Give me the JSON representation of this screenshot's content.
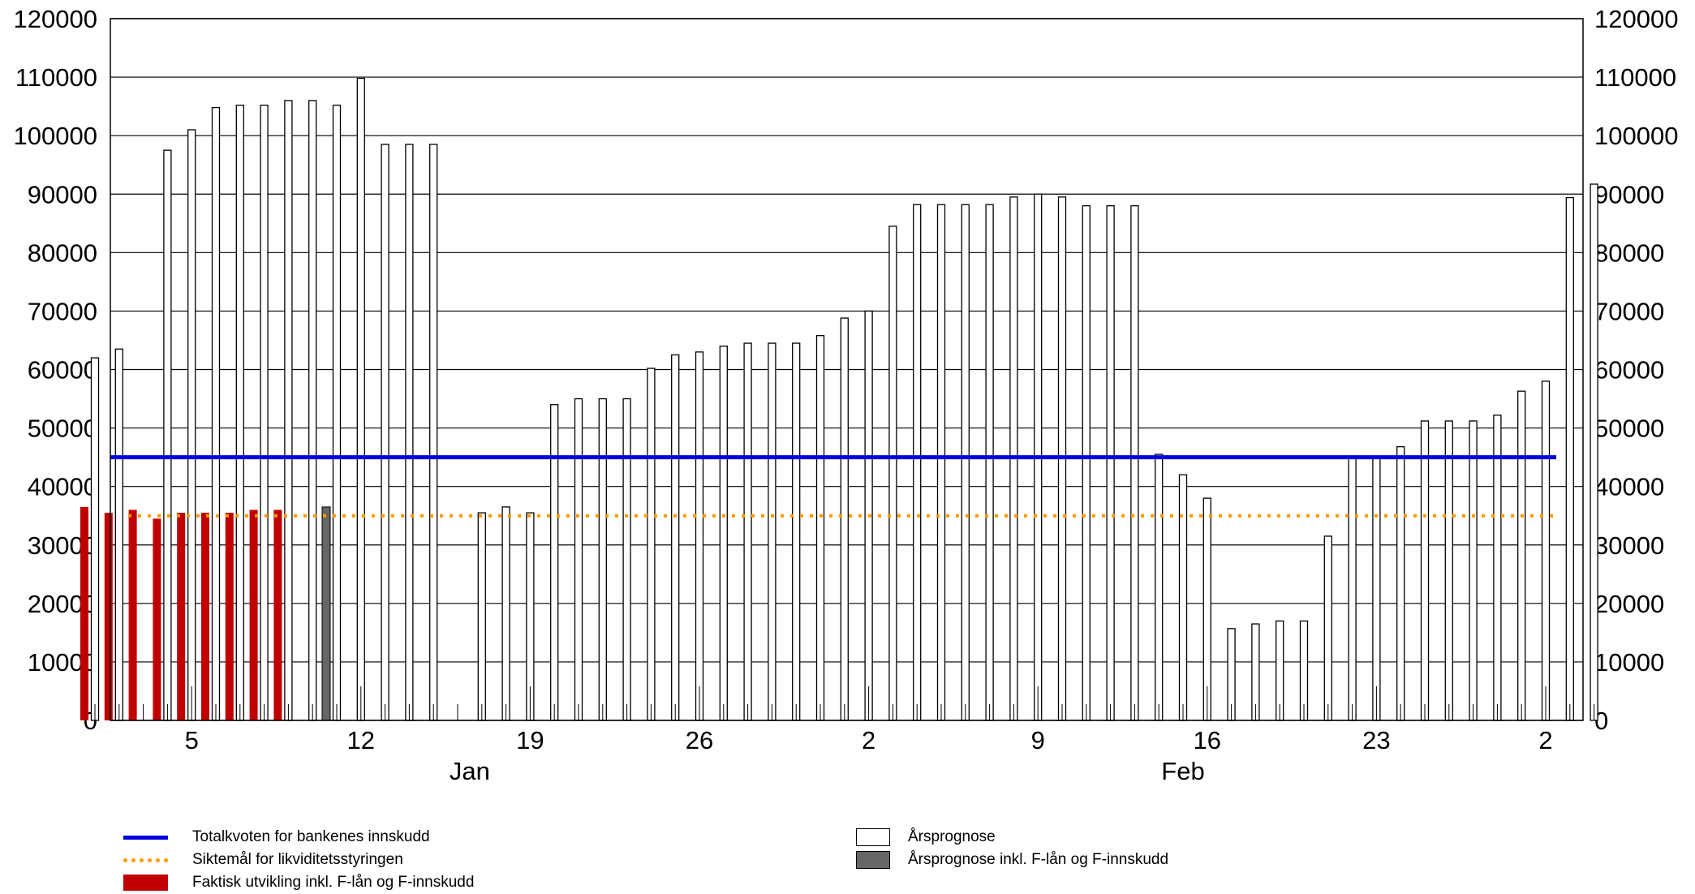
{
  "chart_data": {
    "type": "bar",
    "y_ticks": [
      "0",
      "10000",
      "20000",
      "30000",
      "40000",
      "50000",
      "60000",
      "70000",
      "80000",
      "90000",
      "100000",
      "110000",
      "120000"
    ],
    "ylim": [
      0,
      120000
    ],
    "grid": true,
    "x_tick_labels": [
      {
        "label": "5",
        "day": 5
      },
      {
        "label": "12",
        "day": 12
      },
      {
        "label": "19",
        "day": 19
      },
      {
        "label": "26",
        "day": 26
      },
      {
        "label": "2",
        "day": 33
      },
      {
        "label": "9",
        "day": 40
      },
      {
        "label": "16",
        "day": 47
      },
      {
        "label": "23",
        "day": 54
      },
      {
        "label": "2",
        "day": 61
      }
    ],
    "months": [
      {
        "label": "Jan",
        "day": 16.5
      },
      {
        "label": "Feb",
        "day": 46
      }
    ],
    "reference_lines": [
      {
        "name": "Totalkvoten for bankenes innskudd",
        "value": 45000,
        "color": "#0000dd",
        "style": "solid"
      },
      {
        "name": "Siktemål for likviditetsstyringen",
        "value": 35000,
        "color": "#ff9900",
        "style": "dotted"
      }
    ],
    "bars": [
      {
        "day": 1,
        "prognose": 62000,
        "faktisk": 36500
      },
      {
        "day": 2,
        "prognose": 63500,
        "faktisk": 35500
      },
      {
        "day": 3,
        "faktisk": 36000
      },
      {
        "day": 4,
        "prognose": 97500,
        "faktisk": 34500
      },
      {
        "day": 5,
        "prognose": 101000,
        "faktisk": 35500
      },
      {
        "day": 6,
        "prognose": 104800,
        "faktisk": 35500
      },
      {
        "day": 7,
        "prognose": 105200,
        "faktisk": 35500
      },
      {
        "day": 8,
        "prognose": 105200,
        "faktisk": 36000
      },
      {
        "day": 9,
        "prognose": 106000,
        "faktisk": 36000
      },
      {
        "day": 10,
        "prognose": 106000
      },
      {
        "day": 11,
        "prognose": 105200,
        "inkl_f": 36500
      },
      {
        "day": 12,
        "prognose": 109800
      },
      {
        "day": 13,
        "prognose": 98500
      },
      {
        "day": 14,
        "prognose": 98500
      },
      {
        "day": 15,
        "prognose": 98500
      },
      {
        "day": 17,
        "prognose": 35500
      },
      {
        "day": 18,
        "prognose": 36500
      },
      {
        "day": 19,
        "prognose": 35500
      },
      {
        "day": 20,
        "prognose": 54000
      },
      {
        "day": 21,
        "prognose": 55000
      },
      {
        "day": 22,
        "prognose": 55000
      },
      {
        "day": 23,
        "prognose": 55000
      },
      {
        "day": 24,
        "prognose": 60200
      },
      {
        "day": 25,
        "prognose": 62500
      },
      {
        "day": 26,
        "prognose": 63000
      },
      {
        "day": 27,
        "prognose": 64000
      },
      {
        "day": 28,
        "prognose": 64500
      },
      {
        "day": 29,
        "prognose": 64500
      },
      {
        "day": 30,
        "prognose": 64500
      },
      {
        "day": 31,
        "prognose": 65800
      },
      {
        "day": 32,
        "prognose": 68800
      },
      {
        "day": 33,
        "prognose": 70000
      },
      {
        "day": 34,
        "prognose": 84500
      },
      {
        "day": 35,
        "prognose": 88200
      },
      {
        "day": 36,
        "prognose": 88200
      },
      {
        "day": 37,
        "prognose": 88200
      },
      {
        "day": 38,
        "prognose": 88200
      },
      {
        "day": 39,
        "prognose": 89500
      },
      {
        "day": 40,
        "prognose": 90000
      },
      {
        "day": 41,
        "prognose": 89500
      },
      {
        "day": 42,
        "prognose": 88000
      },
      {
        "day": 43,
        "prognose": 88000
      },
      {
        "day": 44,
        "prognose": 88000
      },
      {
        "day": 45,
        "prognose": 45500
      },
      {
        "day": 46,
        "prognose": 42000
      },
      {
        "day": 47,
        "prognose": 38000
      },
      {
        "day": 48,
        "prognose": 15700
      },
      {
        "day": 49,
        "prognose": 16500
      },
      {
        "day": 50,
        "prognose": 17000
      },
      {
        "day": 51,
        "prognose": 17000
      },
      {
        "day": 52,
        "prognose": 31500
      },
      {
        "day": 53,
        "prognose": 45000
      },
      {
        "day": 54,
        "prognose": 45000
      },
      {
        "day": 55,
        "prognose": 46800
      },
      {
        "day": 56,
        "prognose": 51200
      },
      {
        "day": 57,
        "prognose": 51200
      },
      {
        "day": 58,
        "prognose": 51200
      },
      {
        "day": 59,
        "prognose": 52200
      },
      {
        "day": 60,
        "prognose": 56300
      },
      {
        "day": 61,
        "prognose": 58000
      },
      {
        "day": 62,
        "prognose": 89400
      },
      {
        "day": 63,
        "prognose": 91700
      }
    ],
    "legend": {
      "left": [
        {
          "label": "Totalkvoten for bankenes innskudd",
          "color": "#0000dd",
          "kind": "line"
        },
        {
          "label": "Siktemål for likviditetsstyringen",
          "color": "#ff9900",
          "kind": "dotted"
        },
        {
          "label": "Faktisk utvikling inkl. F-lån og F-innskudd",
          "color": "#c00000",
          "kind": "box"
        }
      ],
      "right": [
        {
          "label": "Årsprognose",
          "color": "#ffffff",
          "kind": "box"
        },
        {
          "label": "Årsprognose inkl. F-lån og F-innskudd",
          "color": "#666666",
          "kind": "box"
        }
      ]
    }
  }
}
